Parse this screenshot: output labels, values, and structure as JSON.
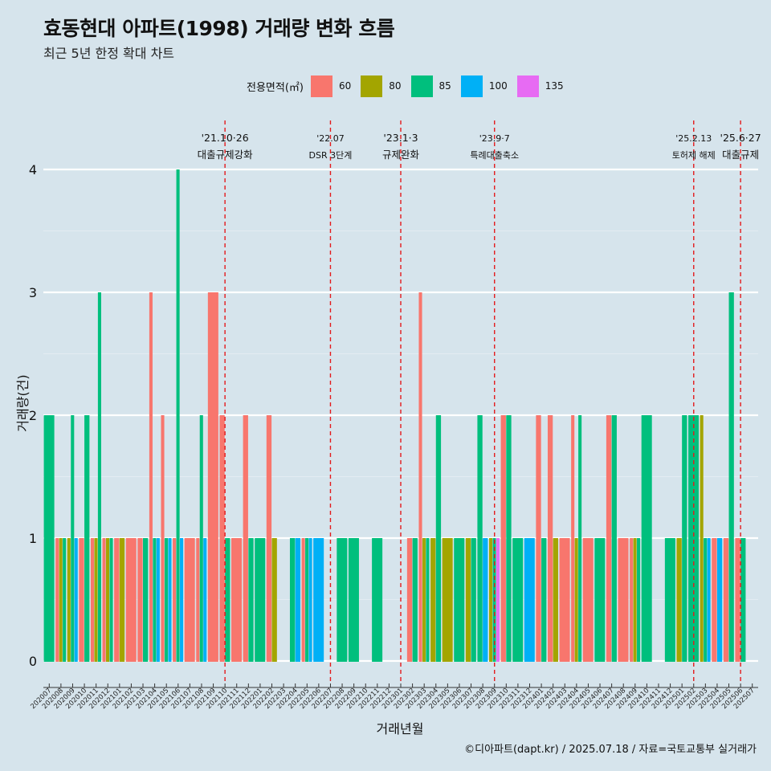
{
  "title": "효동현대 아파트(1998) 거래량 변화 흐름",
  "subtitle": "최근 5년 한정 확대 차트",
  "caption": "©디아파트(dapt.kr) / 2025.07.18 / 자료=국토교통부 실거래가",
  "colors": {
    "60": "#f8766d",
    "80": "#a3a500",
    "85": "#00bf7d",
    "100": "#00b0f6",
    "135": "#e76bf3"
  },
  "chart_data": {
    "type": "bar",
    "xlabel": "거래년월",
    "ylabel": "거래량(건)",
    "ylim": [
      -0.15,
      4.4
    ],
    "yticks": [
      0,
      1,
      2,
      3,
      4
    ],
    "grid": true,
    "legend_title": "전용면적(㎡)",
    "legend_position": "top",
    "series_names": [
      "60",
      "80",
      "85",
      "100",
      "135"
    ],
    "categories": [
      "202007",
      "202008",
      "202009",
      "202010",
      "202011",
      "202012",
      "202101",
      "202102",
      "202103",
      "202104",
      "202105",
      "202106",
      "202107",
      "202108",
      "202109",
      "202110",
      "202111",
      "202112",
      "202201",
      "202202",
      "202203",
      "202204",
      "202205",
      "202206",
      "202207",
      "202208",
      "202209",
      "202210",
      "202211",
      "202212",
      "202301",
      "202302",
      "202303",
      "202304",
      "202305",
      "202306",
      "202307",
      "202308",
      "202309",
      "202310",
      "202311",
      "202312",
      "202401",
      "202402",
      "202403",
      "202404",
      "202405",
      "202406",
      "202407",
      "202408",
      "202409",
      "202410",
      "202411",
      "202412",
      "202501",
      "202502",
      "202503",
      "202504",
      "202505",
      "202506",
      "202507"
    ],
    "bars": [
      {
        "month": "202007",
        "size": "85",
        "count": 2
      },
      {
        "month": "202008",
        "size": "60",
        "count": 1
      },
      {
        "month": "202008",
        "size": "80",
        "count": 1
      },
      {
        "month": "202008",
        "size": "85",
        "count": 1
      },
      {
        "month": "202009",
        "size": "80",
        "count": 1
      },
      {
        "month": "202009",
        "size": "85",
        "count": 2
      },
      {
        "month": "202009",
        "size": "100",
        "count": 1
      },
      {
        "month": "202010",
        "size": "60",
        "count": 1
      },
      {
        "month": "202010",
        "size": "85",
        "count": 2
      },
      {
        "month": "202011",
        "size": "60",
        "count": 1
      },
      {
        "month": "202011",
        "size": "80",
        "count": 1
      },
      {
        "month": "202011",
        "size": "85",
        "count": 3
      },
      {
        "month": "202012",
        "size": "60",
        "count": 1
      },
      {
        "month": "202012",
        "size": "80",
        "count": 1
      },
      {
        "month": "202012",
        "size": "85",
        "count": 1
      },
      {
        "month": "202101",
        "size": "60",
        "count": 1
      },
      {
        "month": "202101",
        "size": "80",
        "count": 1
      },
      {
        "month": "202102",
        "size": "60",
        "count": 1
      },
      {
        "month": "202103",
        "size": "60",
        "count": 1
      },
      {
        "month": "202103",
        "size": "85",
        "count": 1
      },
      {
        "month": "202104",
        "size": "60",
        "count": 3
      },
      {
        "month": "202104",
        "size": "85",
        "count": 1
      },
      {
        "month": "202104",
        "size": "100",
        "count": 1
      },
      {
        "month": "202105",
        "size": "60",
        "count": 2
      },
      {
        "month": "202105",
        "size": "85",
        "count": 1
      },
      {
        "month": "202105",
        "size": "100",
        "count": 1
      },
      {
        "month": "202106",
        "size": "60",
        "count": 1
      },
      {
        "month": "202106",
        "size": "85",
        "count": 4
      },
      {
        "month": "202106",
        "size": "100",
        "count": 1
      },
      {
        "month": "202107",
        "size": "60",
        "count": 1
      },
      {
        "month": "202108",
        "size": "60",
        "count": 1
      },
      {
        "month": "202108",
        "size": "85",
        "count": 2
      },
      {
        "month": "202108",
        "size": "100",
        "count": 1
      },
      {
        "month": "202109",
        "size": "60",
        "count": 3
      },
      {
        "month": "202110",
        "size": "60",
        "count": 2
      },
      {
        "month": "202110",
        "size": "85",
        "count": 1
      },
      {
        "month": "202111",
        "size": "60",
        "count": 1
      },
      {
        "month": "202112",
        "size": "60",
        "count": 2
      },
      {
        "month": "202112",
        "size": "85",
        "count": 1
      },
      {
        "month": "202201",
        "size": "85",
        "count": 1
      },
      {
        "month": "202202",
        "size": "60",
        "count": 2
      },
      {
        "month": "202202",
        "size": "80",
        "count": 1
      },
      {
        "month": "202204",
        "size": "85",
        "count": 1
      },
      {
        "month": "202204",
        "size": "100",
        "count": 1
      },
      {
        "month": "202205",
        "size": "60",
        "count": 1
      },
      {
        "month": "202205",
        "size": "85",
        "count": 1
      },
      {
        "month": "202205",
        "size": "100",
        "count": 1
      },
      {
        "month": "202206",
        "size": "100",
        "count": 1
      },
      {
        "month": "202208",
        "size": "85",
        "count": 1
      },
      {
        "month": "202209",
        "size": "85",
        "count": 1
      },
      {
        "month": "202211",
        "size": "85",
        "count": 1
      },
      {
        "month": "202302",
        "size": "60",
        "count": 1
      },
      {
        "month": "202302",
        "size": "85",
        "count": 1
      },
      {
        "month": "202303",
        "size": "60",
        "count": 3
      },
      {
        "month": "202303",
        "size": "80",
        "count": 1
      },
      {
        "month": "202303",
        "size": "85",
        "count": 1
      },
      {
        "month": "202304",
        "size": "80",
        "count": 1
      },
      {
        "month": "202304",
        "size": "85",
        "count": 2
      },
      {
        "month": "202305",
        "size": "80",
        "count": 1
      },
      {
        "month": "202306",
        "size": "85",
        "count": 1
      },
      {
        "month": "202307",
        "size": "80",
        "count": 1
      },
      {
        "month": "202307",
        "size": "85",
        "count": 1
      },
      {
        "month": "202308",
        "size": "85",
        "count": 2
      },
      {
        "month": "202308",
        "size": "100",
        "count": 1
      },
      {
        "month": "202309",
        "size": "80",
        "count": 1
      },
      {
        "month": "202309",
        "size": "85",
        "count": 1
      },
      {
        "month": "202309",
        "size": "135",
        "count": 1
      },
      {
        "month": "202310",
        "size": "60",
        "count": 2
      },
      {
        "month": "202310",
        "size": "85",
        "count": 2
      },
      {
        "month": "202311",
        "size": "85",
        "count": 1
      },
      {
        "month": "202312",
        "size": "100",
        "count": 1
      },
      {
        "month": "202401",
        "size": "60",
        "count": 2
      },
      {
        "month": "202401",
        "size": "85",
        "count": 1
      },
      {
        "month": "202402",
        "size": "60",
        "count": 2
      },
      {
        "month": "202402",
        "size": "80",
        "count": 1
      },
      {
        "month": "202403",
        "size": "60",
        "count": 1
      },
      {
        "month": "202404",
        "size": "60",
        "count": 2
      },
      {
        "month": "202404",
        "size": "80",
        "count": 1
      },
      {
        "month": "202404",
        "size": "85",
        "count": 2
      },
      {
        "month": "202405",
        "size": "60",
        "count": 1
      },
      {
        "month": "202406",
        "size": "85",
        "count": 1
      },
      {
        "month": "202407",
        "size": "60",
        "count": 2
      },
      {
        "month": "202407",
        "size": "85",
        "count": 2
      },
      {
        "month": "202408",
        "size": "60",
        "count": 1
      },
      {
        "month": "202409",
        "size": "60",
        "count": 1
      },
      {
        "month": "202409",
        "size": "80",
        "count": 1
      },
      {
        "month": "202409",
        "size": "85",
        "count": 1
      },
      {
        "month": "202410",
        "size": "85",
        "count": 2
      },
      {
        "month": "202412",
        "size": "85",
        "count": 1
      },
      {
        "month": "202501",
        "size": "80",
        "count": 1
      },
      {
        "month": "202501",
        "size": "85",
        "count": 2
      },
      {
        "month": "202502",
        "size": "85",
        "count": 2
      },
      {
        "month": "202503",
        "size": "80",
        "count": 2
      },
      {
        "month": "202503",
        "size": "85",
        "count": 1
      },
      {
        "month": "202503",
        "size": "100",
        "count": 1
      },
      {
        "month": "202504",
        "size": "60",
        "count": 1
      },
      {
        "month": "202504",
        "size": "100",
        "count": 1
      },
      {
        "month": "202505",
        "size": "60",
        "count": 1
      },
      {
        "month": "202505",
        "size": "85",
        "count": 3
      },
      {
        "month": "202506",
        "size": "60",
        "count": 1
      },
      {
        "month": "202506",
        "size": "85",
        "count": 1
      }
    ],
    "events": [
      {
        "month": "202110",
        "date": "'21.10·26",
        "label": "대출규제강화"
      },
      {
        "month": "202207",
        "date": "'22.07",
        "label": "DSR 3단계"
      },
      {
        "month": "202301",
        "date": "'23.1·3",
        "label": "규제완화"
      },
      {
        "month": "202309",
        "date": "'23.9·7",
        "label": "특례대출축소"
      },
      {
        "month": "202502",
        "date": "'25.2.13",
        "label": "토허제 해제"
      },
      {
        "month": "202506",
        "date": "'25.6·27",
        "label": "대출규제"
      }
    ]
  }
}
